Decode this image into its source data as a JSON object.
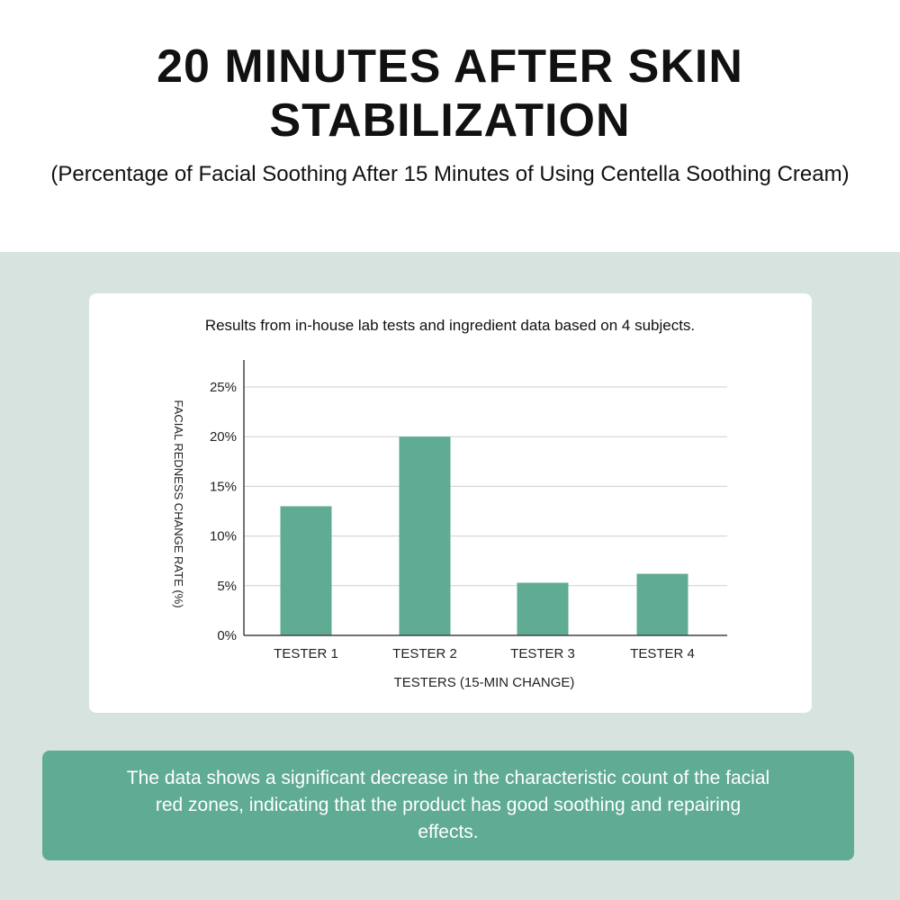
{
  "header": {
    "title": "20 MINUTES AFTER SKIN STABILIZATION",
    "subtitle": "(Percentage of Facial Soothing After 15 Minutes of Using Centella Soothing Cream)"
  },
  "note": "Results from in-house lab tests and ingredient data based on 4 subjects.",
  "summary": "The data shows a significant decrease in the characteristic count of the facial red zones, indicating that the product has good soothing and repairing effects.",
  "colors": {
    "bar": "#5fab93",
    "background": "#d6e3df"
  },
  "chart_data": {
    "type": "bar",
    "categories": [
      "TESTER 1",
      "TESTER 2",
      "TESTER 3",
      "TESTER 4"
    ],
    "values": [
      13,
      20,
      5.3,
      6.2
    ],
    "xlabel": "TESTERS (15-MIN CHANGE)",
    "ylabel": "FACIAL REDNESS CHANGE RATE (%)",
    "ylim": [
      0,
      25
    ],
    "yticks": [
      "0%",
      "5%",
      "10%",
      "15%",
      "20%",
      "25%"
    ],
    "grid": true
  }
}
